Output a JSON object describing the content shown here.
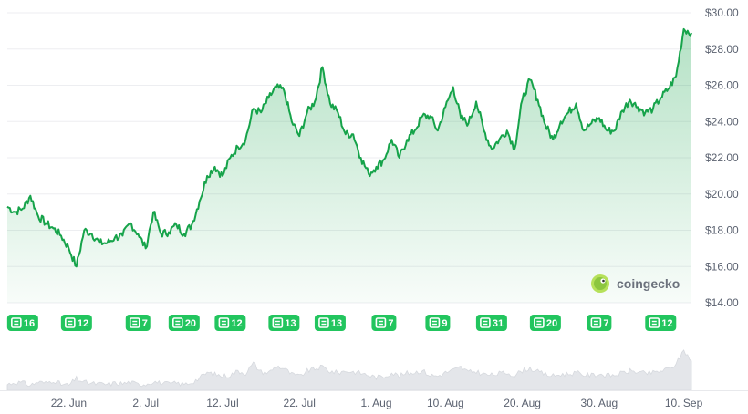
{
  "chart_data": {
    "type": "area",
    "title": "",
    "xlabel": "",
    "ylabel": "",
    "y_axis_position": "right",
    "ylim": [
      14,
      30
    ],
    "y_ticks": [
      "$14.00",
      "$16.00",
      "$18.00",
      "$20.00",
      "$22.00",
      "$24.00",
      "$26.00",
      "$28.00",
      "$30.00"
    ],
    "y_tick_values": [
      14,
      16,
      18,
      20,
      22,
      24,
      26,
      28,
      30
    ],
    "x_tick_labels": [
      "22. Jun",
      "2. Jul",
      "12. Jul",
      "22. Jul",
      "1. Aug",
      "10. Aug",
      "20. Aug",
      "30. Aug",
      "10. Sep"
    ],
    "x_tick_dates": [
      "2024-06-22",
      "2024-07-02",
      "2024-07-12",
      "2024-07-22",
      "2024-08-01",
      "2024-08-10",
      "2024-08-20",
      "2024-08-30",
      "2024-09-10"
    ],
    "xlim": [
      "2024-06-14",
      "2024-09-11"
    ],
    "grid": true,
    "line_color": "#16a34a",
    "fill_color": "#16a34a",
    "series": [
      {
        "x": [
          "2024-06-14",
          "2024-06-15",
          "2024-06-16",
          "2024-06-17",
          "2024-06-18",
          "2024-06-19",
          "2024-06-20",
          "2024-06-21",
          "2024-06-22",
          "2024-06-23",
          "2024-06-24",
          "2024-06-25",
          "2024-06-26",
          "2024-06-27",
          "2024-06-28",
          "2024-06-29",
          "2024-06-30",
          "2024-07-01",
          "2024-07-02",
          "2024-07-03",
          "2024-07-04",
          "2024-07-05",
          "2024-07-06",
          "2024-07-07",
          "2024-07-08",
          "2024-07-09",
          "2024-07-10",
          "2024-07-11",
          "2024-07-12",
          "2024-07-13",
          "2024-07-14",
          "2024-07-15",
          "2024-07-16",
          "2024-07-17",
          "2024-07-18",
          "2024-07-19",
          "2024-07-20",
          "2024-07-21",
          "2024-07-22",
          "2024-07-23",
          "2024-07-24",
          "2024-07-25",
          "2024-07-26",
          "2024-07-27",
          "2024-07-28",
          "2024-07-29",
          "2024-07-30",
          "2024-07-31",
          "2024-08-01",
          "2024-08-02",
          "2024-08-03",
          "2024-08-04",
          "2024-08-05",
          "2024-08-06",
          "2024-08-07",
          "2024-08-08",
          "2024-08-09",
          "2024-08-10",
          "2024-08-11",
          "2024-08-12",
          "2024-08-13",
          "2024-08-14",
          "2024-08-15",
          "2024-08-16",
          "2024-08-17",
          "2024-08-18",
          "2024-08-19",
          "2024-08-20",
          "2024-08-21",
          "2024-08-22",
          "2024-08-23",
          "2024-08-24",
          "2024-08-25",
          "2024-08-26",
          "2024-08-27",
          "2024-08-28",
          "2024-08-29",
          "2024-08-30",
          "2024-08-31",
          "2024-09-01",
          "2024-09-02",
          "2024-09-03",
          "2024-09-04",
          "2024-09-05",
          "2024-09-06",
          "2024-09-07",
          "2024-09-08",
          "2024-09-09",
          "2024-09-10",
          "2024-09-11"
        ],
        "values": [
          19.3,
          19.0,
          19.2,
          19.9,
          18.8,
          18.4,
          18.1,
          17.7,
          17.0,
          16.0,
          18.0,
          17.8,
          17.3,
          17.3,
          17.6,
          17.7,
          18.4,
          17.8,
          17.0,
          19.0,
          17.8,
          17.9,
          18.3,
          17.8,
          18.3,
          19.6,
          21.0,
          21.5,
          21.0,
          22.0,
          22.6,
          23.0,
          24.7,
          24.5,
          25.3,
          25.9,
          25.7,
          24.0,
          23.2,
          24.5,
          25.1,
          27.0,
          25.0,
          24.5,
          23.3,
          23.3,
          22.0,
          21.1,
          21.5,
          21.9,
          23.0,
          22.0,
          23.0,
          23.5,
          24.3,
          24.3,
          23.5,
          24.8,
          25.9,
          24.2,
          23.9,
          25.1,
          23.5,
          22.5,
          23.0,
          23.5,
          22.5,
          25.2,
          26.3,
          25.2,
          23.8,
          23.0,
          24.0,
          24.5,
          25.0,
          23.5,
          23.9,
          24.2,
          23.5,
          23.5,
          24.6,
          25.2,
          24.8,
          24.5,
          24.7,
          25.3,
          25.8,
          26.5,
          29.1,
          28.9
        ]
      }
    ],
    "volume_values": [
      0.14,
      0.19,
      0.18,
      0.12,
      0.2,
      0.17,
      0.24,
      0.14,
      0.12,
      0.28,
      0.19,
      0.16,
      0.15,
      0.14,
      0.17,
      0.16,
      0.19,
      0.14,
      0.15,
      0.21,
      0.17,
      0.15,
      0.17,
      0.14,
      0.19,
      0.29,
      0.42,
      0.38,
      0.34,
      0.36,
      0.46,
      0.41,
      0.64,
      0.44,
      0.42,
      0.58,
      0.52,
      0.38,
      0.33,
      0.46,
      0.51,
      0.56,
      0.45,
      0.42,
      0.46,
      0.44,
      0.41,
      0.36,
      0.31,
      0.33,
      0.42,
      0.34,
      0.41,
      0.43,
      0.47,
      0.36,
      0.34,
      0.42,
      0.48,
      0.55,
      0.43,
      0.45,
      0.38,
      0.36,
      0.4,
      0.42,
      0.36,
      0.47,
      0.53,
      0.44,
      0.38,
      0.34,
      0.38,
      0.39,
      0.42,
      0.37,
      0.36,
      0.39,
      0.35,
      0.36,
      0.41,
      0.46,
      0.44,
      0.4,
      0.42,
      0.46,
      0.51,
      0.62,
      0.96,
      0.7
    ],
    "events": [
      {
        "date": "2024-06-16",
        "label": "16"
      },
      {
        "date": "2024-06-23",
        "label": "12"
      },
      {
        "date": "2024-07-01",
        "label": "7"
      },
      {
        "date": "2024-07-07",
        "label": "20"
      },
      {
        "date": "2024-07-13",
        "label": "12"
      },
      {
        "date": "2024-07-20",
        "label": "13"
      },
      {
        "date": "2024-07-26",
        "label": "13"
      },
      {
        "date": "2024-08-02",
        "label": "7"
      },
      {
        "date": "2024-08-09",
        "label": "9"
      },
      {
        "date": "2024-08-16",
        "label": "31"
      },
      {
        "date": "2024-08-23",
        "label": "20"
      },
      {
        "date": "2024-08-30",
        "label": "7"
      },
      {
        "date": "2024-09-07",
        "label": "12"
      }
    ]
  },
  "watermark": {
    "brand": "coingecko",
    "logo_icon": "gecko-logo-icon"
  },
  "event_icon": "news-icon",
  "colors": {
    "line": "#16a34a",
    "badge": "#22c55e",
    "volume": "#e4e6ea"
  }
}
